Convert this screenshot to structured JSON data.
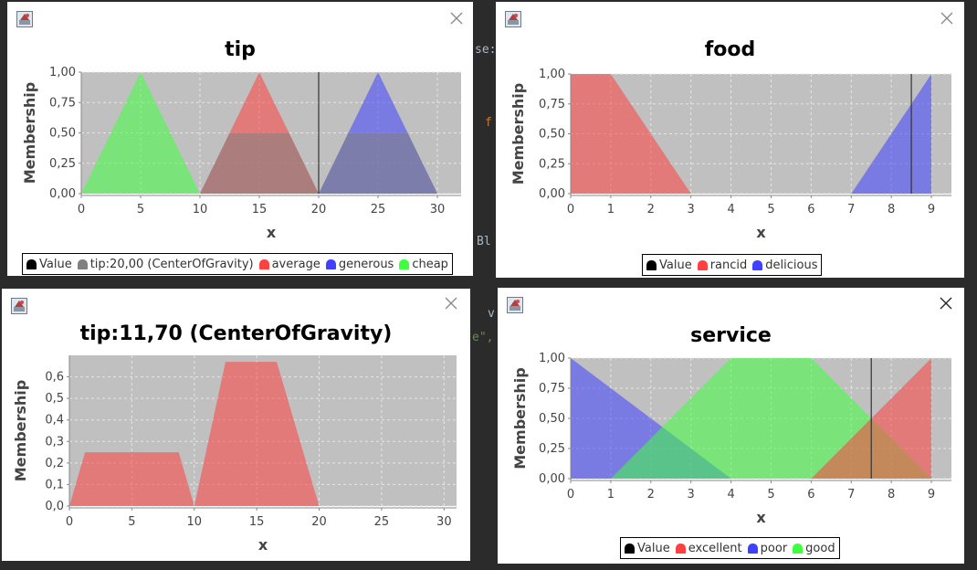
{
  "background_code": {
    "snippet_1": "se:",
    "snippet_2": "f",
    "snippet_3": "Bl",
    "snippet_4": "v",
    "snippet_5": "e\","
  },
  "colors": {
    "plot_bg": "#c0c0c0",
    "red": "#ff4040",
    "blue": "#4040ff",
    "green": "#40ff40",
    "gray": "#808080",
    "value_line": "#333333"
  },
  "chart_data": [
    {
      "type": "area",
      "title": "tip",
      "xlabel": "x",
      "ylabel": "Membership",
      "xlim": [
        0,
        32
      ],
      "ylim": [
        0,
        1
      ],
      "xticks": [
        0,
        5,
        10,
        15,
        20,
        25,
        30
      ],
      "yticks": [
        0,
        0.25,
        0.5,
        0.75,
        1
      ],
      "ytick_labels": [
        "0,00",
        "0,25",
        "0,50",
        "0,75",
        "1,00"
      ],
      "value_line": 20,
      "grid": true,
      "legend_position": "bottom",
      "legend": [
        {
          "label": "Value",
          "color": "#000000"
        },
        {
          "label": "tip:20,00 (CenterOfGravity)",
          "color": "#808080"
        },
        {
          "label": "average",
          "color": "#ff4040"
        },
        {
          "label": "generous",
          "color": "#4040ff"
        },
        {
          "label": "cheap",
          "color": "#40ff40"
        }
      ],
      "series": [
        {
          "name": "cheap",
          "color": "#40ff40",
          "points": [
            [
              0,
              0
            ],
            [
              5,
              1
            ],
            [
              10,
              0
            ]
          ]
        },
        {
          "name": "average",
          "color": "#ff4040",
          "points": [
            [
              10,
              0
            ],
            [
              15,
              1
            ],
            [
              20,
              0
            ]
          ]
        },
        {
          "name": "generous",
          "color": "#4040ff",
          "points": [
            [
              20,
              0
            ],
            [
              25,
              1
            ],
            [
              30,
              0
            ]
          ]
        },
        {
          "name": "tip:20,00 (CenterOfGravity)",
          "color": "#808080",
          "points": [
            [
              10,
              0
            ],
            [
              12.5,
              0.5
            ],
            [
              17.5,
              0.5
            ],
            [
              20,
              0
            ],
            [
              22.5,
              0.5
            ],
            [
              27.5,
              0.5
            ],
            [
              30,
              0
            ]
          ]
        }
      ]
    },
    {
      "type": "area",
      "title": "food",
      "xlabel": "x",
      "ylabel": "Membership",
      "xlim": [
        0,
        9.5
      ],
      "ylim": [
        0,
        1
      ],
      "xticks": [
        0,
        1,
        2,
        3,
        4,
        5,
        6,
        7,
        8,
        9
      ],
      "yticks": [
        0,
        0.25,
        0.5,
        0.75,
        1
      ],
      "ytick_labels": [
        "0,00",
        "0,25",
        "0,50",
        "0,75",
        "1,00"
      ],
      "value_line": 8.5,
      "grid": true,
      "legend_position": "bottom",
      "legend": [
        {
          "label": "Value",
          "color": "#000000"
        },
        {
          "label": "rancid",
          "color": "#ff4040"
        },
        {
          "label": "delicious",
          "color": "#4040ff"
        }
      ],
      "series": [
        {
          "name": "rancid",
          "color": "#ff4040",
          "points": [
            [
              0,
              0
            ],
            [
              0,
              1
            ],
            [
              1,
              1
            ],
            [
              3,
              0
            ]
          ]
        },
        {
          "name": "delicious",
          "color": "#4040ff",
          "points": [
            [
              7,
              0
            ],
            [
              9,
              1
            ],
            [
              9,
              0
            ]
          ]
        }
      ]
    },
    {
      "type": "area",
      "title": "tip:11,70 (CenterOfGravity)",
      "xlabel": "x",
      "ylabel": "Membership",
      "xlim": [
        0,
        31
      ],
      "ylim": [
        0,
        0.7
      ],
      "xticks": [
        0,
        5,
        10,
        15,
        20,
        25,
        30
      ],
      "yticks": [
        0,
        0.1,
        0.2,
        0.3,
        0.4,
        0.5,
        0.6
      ],
      "ytick_labels": [
        "0,0",
        "0,1",
        "0,2",
        "0,3",
        "0,4",
        "0,5",
        "0,6"
      ],
      "value_line": null,
      "grid": true,
      "legend": [],
      "series": [
        {
          "name": "",
          "color": "#ff4040",
          "points": [
            [
              0,
              0
            ],
            [
              1.25,
              0.25
            ],
            [
              8.75,
              0.25
            ],
            [
              10,
              0
            ],
            [
              12.5,
              0.67
            ],
            [
              16.6,
              0.67
            ],
            [
              20,
              0
            ]
          ]
        }
      ]
    },
    {
      "type": "area",
      "title": "service",
      "xlabel": "x",
      "ylabel": "Membership",
      "xlim": [
        0,
        9.5
      ],
      "ylim": [
        0,
        1
      ],
      "xticks": [
        0,
        1,
        2,
        3,
        4,
        5,
        6,
        7,
        8,
        9
      ],
      "yticks": [
        0,
        0.25,
        0.5,
        0.75,
        1
      ],
      "ytick_labels": [
        "0,00",
        "0,25",
        "0,50",
        "0,75",
        "1,00"
      ],
      "value_line": 7.5,
      "grid": true,
      "legend_position": "bottom",
      "legend": [
        {
          "label": "Value",
          "color": "#000000"
        },
        {
          "label": "excellent",
          "color": "#ff4040"
        },
        {
          "label": "poor",
          "color": "#4040ff"
        },
        {
          "label": "good",
          "color": "#40ff40"
        }
      ],
      "series": [
        {
          "name": "poor",
          "color": "#4040ff",
          "points": [
            [
              0,
              1
            ],
            [
              4,
              0
            ],
            [
              0,
              0
            ]
          ]
        },
        {
          "name": "good",
          "color": "#40ff40",
          "points": [
            [
              1,
              0
            ],
            [
              4,
              1
            ],
            [
              6,
              1
            ],
            [
              9,
              0
            ]
          ]
        },
        {
          "name": "excellent",
          "color": "#ff4040",
          "points": [
            [
              6,
              0
            ],
            [
              9,
              1
            ],
            [
              9,
              0
            ]
          ]
        }
      ]
    }
  ]
}
